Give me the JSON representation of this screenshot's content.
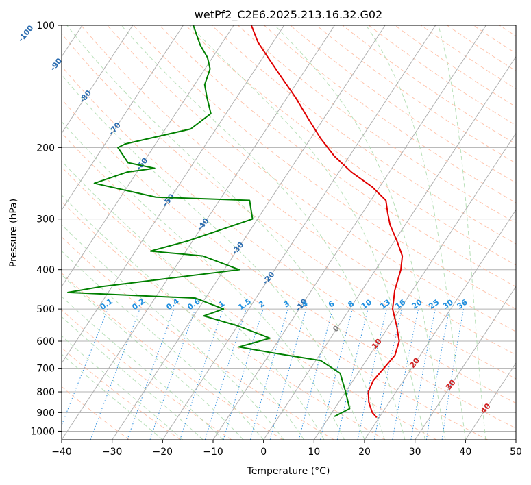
{
  "chart_data": {
    "type": "line",
    "title": "wetPf2_C2E6.2025.213.16.32.G02",
    "xlabel": "Temperature (°C)",
    "ylabel": "Pressure (hPa)",
    "xlim": [
      -40,
      50
    ],
    "ylim": [
      1050,
      100
    ],
    "y_scale": "log",
    "grid": true,
    "x_ticks": [
      -40,
      -30,
      -20,
      -10,
      0,
      10,
      20,
      30,
      40,
      50
    ],
    "y_ticks": [
      100,
      200,
      300,
      400,
      500,
      600,
      700,
      800,
      900,
      1000
    ],
    "series": [
      {
        "kind": "temperature",
        "color": "#e00000",
        "points": [
          [
            925,
            19.5
          ],
          [
            900,
            18.0
          ],
          [
            850,
            16.0
          ],
          [
            800,
            14.5
          ],
          [
            750,
            14.0
          ],
          [
            700,
            14.5
          ],
          [
            650,
            15.0
          ],
          [
            600,
            14.0
          ],
          [
            550,
            11.5
          ],
          [
            500,
            8.5
          ],
          [
            450,
            6.5
          ],
          [
            400,
            5.0
          ],
          [
            370,
            3.5
          ],
          [
            340,
            0.5
          ],
          [
            310,
            -3.0
          ],
          [
            290,
            -5.0
          ],
          [
            270,
            -7.0
          ],
          [
            250,
            -11.5
          ],
          [
            230,
            -17.5
          ],
          [
            210,
            -23.0
          ],
          [
            190,
            -28.0
          ],
          [
            170,
            -33.0
          ],
          [
            150,
            -38.5
          ],
          [
            135,
            -43.5
          ],
          [
            120,
            -49.0
          ],
          [
            110,
            -53.0
          ],
          [
            100,
            -56.5
          ]
        ]
      },
      {
        "kind": "dewpoint",
        "color": "#008000",
        "points": [
          [
            920,
            11.0
          ],
          [
            880,
            13.0
          ],
          [
            800,
            10.0
          ],
          [
            720,
            6.5
          ],
          [
            670,
            1.0
          ],
          [
            640,
            -10.0
          ],
          [
            620,
            -17.0
          ],
          [
            590,
            -12.0
          ],
          [
            550,
            -20.0
          ],
          [
            520,
            -28.0
          ],
          [
            500,
            -25.0
          ],
          [
            470,
            -32.0
          ],
          [
            455,
            -58.0
          ],
          [
            440,
            -52.0
          ],
          [
            400,
            -27.0
          ],
          [
            370,
            -36.0
          ],
          [
            360,
            -47.0
          ],
          [
            340,
            -41.0
          ],
          [
            300,
            -31.0
          ],
          [
            270,
            -34.0
          ],
          [
            265,
            -53.0
          ],
          [
            245,
            -67.0
          ],
          [
            230,
            -62.0
          ],
          [
            225,
            -57.0
          ],
          [
            218,
            -63.0
          ],
          [
            200,
            -67.0
          ],
          [
            196,
            -66.0
          ],
          [
            180,
            -55.0
          ],
          [
            165,
            -53.0
          ],
          [
            150,
            -56.0
          ],
          [
            140,
            -58.0
          ],
          [
            128,
            -59.0
          ],
          [
            120,
            -61.0
          ],
          [
            112,
            -64.0
          ],
          [
            100,
            -68.0
          ]
        ]
      }
    ],
    "isotherm_labels": [
      "-100",
      "-90",
      "-80",
      "-70",
      "-60",
      "-50",
      "-40",
      "-30",
      "-20",
      "-10",
      "0",
      "10",
      "20",
      "30",
      "40"
    ],
    "mixing_ratio_labels": [
      "0.1",
      "0.2",
      "0.4",
      "0.6",
      "1",
      "1.5",
      "2",
      "3",
      "4",
      "6",
      "8",
      "10",
      "13",
      "16",
      "20",
      "25",
      "30",
      "36"
    ]
  },
  "colors": {
    "temperature": "#e00000",
    "dewpoint": "#008000",
    "isotherm": "#b0b0b0",
    "dry_adiabat": "#ffb090",
    "moist_adiabat": "#a8d8a8",
    "mixing_ratio": "#3090e0",
    "isotherm_label_cold": "#2a6cb0",
    "isotherm_label_warm": "#d02020",
    "isotherm_label_zero": "#808080",
    "mixing_label": "#2090e0"
  }
}
